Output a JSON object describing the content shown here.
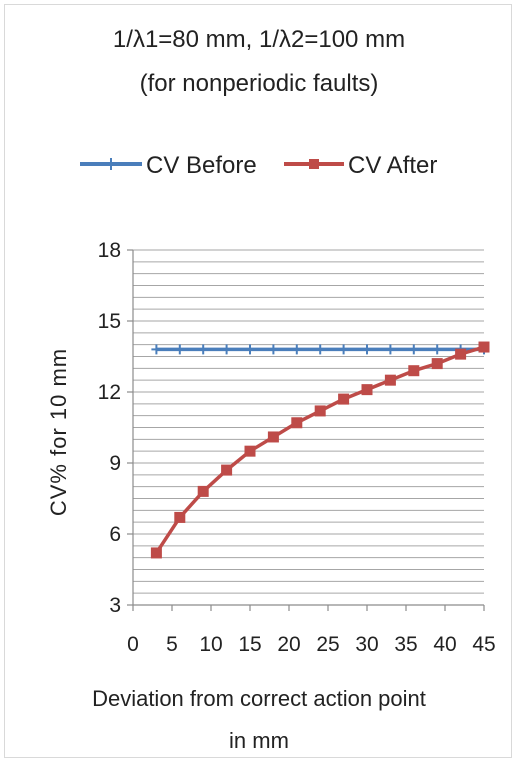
{
  "chart_data": {
    "type": "line",
    "title_lines": [
      "1/λ1=80 mm, 1/λ2=100 mm",
      "(for nonperiodic faults)"
    ],
    "xlabel_lines": [
      "Deviation from correct  action point",
      "in mm"
    ],
    "ylabel": "CV%  for 10 mm",
    "x_ticks": [
      0,
      5,
      10,
      15,
      20,
      25,
      30,
      35,
      40,
      45
    ],
    "y_ticks": [
      3,
      6,
      9,
      12,
      15,
      18
    ],
    "xlim": [
      0,
      45
    ],
    "ylim": [
      3,
      18
    ],
    "y_minor_step": 0.5,
    "grid": true,
    "legend_position": "top",
    "x": [
      3,
      6,
      9,
      12,
      15,
      18,
      21,
      24,
      27,
      30,
      33,
      36,
      39,
      42,
      45
    ],
    "series": [
      {
        "name": "CV Before",
        "color": "#4a7ebb",
        "marker": "plus",
        "values": [
          13.8,
          13.8,
          13.8,
          13.8,
          13.8,
          13.8,
          13.8,
          13.8,
          13.8,
          13.8,
          13.8,
          13.8,
          13.8,
          13.8,
          13.8
        ]
      },
      {
        "name": "CV After",
        "color": "#be4b48",
        "marker": "square",
        "values": [
          5.2,
          6.7,
          7.8,
          8.7,
          9.5,
          10.1,
          10.7,
          11.2,
          11.7,
          12.1,
          12.5,
          12.9,
          13.2,
          13.6,
          13.9
        ]
      }
    ]
  }
}
